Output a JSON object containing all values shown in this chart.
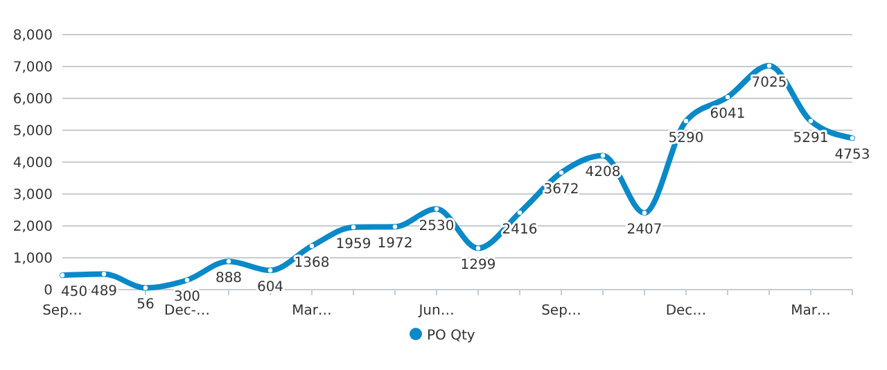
{
  "chart_data": {
    "type": "line",
    "categories": [
      "Sep…",
      null,
      null,
      "Dec-…",
      null,
      null,
      "Mar…",
      null,
      null,
      "Jun…",
      null,
      null,
      "Sep…",
      null,
      null,
      "Dec…",
      null,
      null,
      "Mar…",
      null
    ],
    "series": [
      {
        "name": "PO Qty",
        "color": "#0a89c8",
        "values": [
          450,
          489,
          56,
          300,
          888,
          604,
          1368,
          1959,
          1972,
          2530,
          1299,
          2416,
          3672,
          4208,
          2407,
          5290,
          6041,
          7025,
          5291,
          4753
        ]
      }
    ],
    "ylim": [
      0,
      8000
    ],
    "yticks": [
      {
        "value": 0,
        "label": "0"
      },
      {
        "value": 1000,
        "label": "1,000"
      },
      {
        "value": 2000,
        "label": "2,000"
      },
      {
        "value": 3000,
        "label": "3,000"
      },
      {
        "value": 4000,
        "label": "4,000"
      },
      {
        "value": 5000,
        "label": "5,000"
      },
      {
        "value": 6000,
        "label": "6,000"
      },
      {
        "value": 7000,
        "label": "7,000"
      },
      {
        "value": 8000,
        "label": "8,000"
      }
    ],
    "grid": "y",
    "legend": "bottom",
    "marker": "circle",
    "line_style": "solid",
    "data_labels": true
  }
}
